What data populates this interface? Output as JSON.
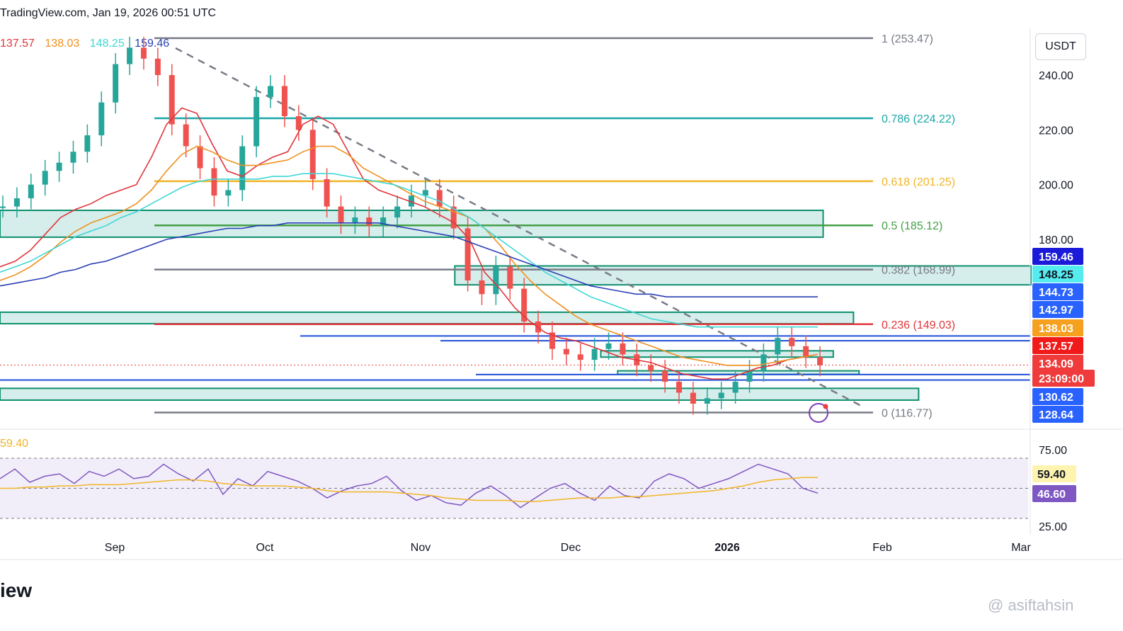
{
  "header": {
    "text": "TradingView.com, Jan 19, 2026 00:51 UTC"
  },
  "ma_legend": [
    {
      "value": "137.57",
      "color": "#e0353b"
    },
    {
      "value": "138.03",
      "color": "#f0901e"
    },
    {
      "value": "148.25",
      "color": "#3fd6d6"
    },
    {
      "value": "159.46",
      "color": "#2a3fb5"
    }
  ],
  "rsi_legend": {
    "value": "59.40"
  },
  "currency": "USDT",
  "footer": {
    "brand": "iew"
  },
  "watermark": {
    "text": "@ asiftahsin"
  },
  "chart_data": {
    "type": "candlestick",
    "title": "TradingView.com, Jan 19, 2026 00:51 UTC",
    "price_axis": {
      "min": 110,
      "max": 260,
      "ticks": [
        "240.00",
        "220.00",
        "200.00",
        "180.00"
      ]
    },
    "x_axis": {
      "labels": [
        "Sep",
        "Oct",
        "Nov",
        "Dec",
        "2026",
        "Feb",
        "Mar"
      ]
    },
    "fib_levels": [
      {
        "label": "1 (253.47)",
        "price": 253.47,
        "color": "#787b86"
      },
      {
        "label": "0.786 (224.22)",
        "price": 224.22,
        "color": "#1ba7a8"
      },
      {
        "label": "0.618 (201.25)",
        "price": 201.25,
        "color": "#f0b526"
      },
      {
        "label": "0.5 (185.12)",
        "price": 185.12,
        "color": "#43a047"
      },
      {
        "label": "0.382 (168.99)",
        "price": 168.99,
        "color": "#787b86"
      },
      {
        "label": "0.236 (149.03)",
        "price": 149.03,
        "color": "#e0353b"
      },
      {
        "label": "0 (116.77)",
        "price": 116.77,
        "color": "#787b86"
      }
    ],
    "price_labels": [
      {
        "text": "159.46",
        "price": 159.46,
        "bg": "#1a1ad8",
        "fg": "#ffffff"
      },
      {
        "text": "148.25",
        "price": 148.25,
        "bg": "#55ecf0",
        "fg": "#131722"
      },
      {
        "text": "144.73",
        "price": 144.73,
        "bg": "#2962ff",
        "fg": "#ffffff"
      },
      {
        "text": "142.97",
        "price": 142.97,
        "bg": "#2962ff",
        "fg": "#ffffff"
      },
      {
        "text": "138.03",
        "price": 138.03,
        "bg": "#f5a01e",
        "fg": "#ffffff"
      },
      {
        "text": "137.57",
        "price": 137.57,
        "bg": "#f01a1a",
        "fg": "#ffffff"
      },
      {
        "text": "134.09",
        "price": 134.09,
        "bg": "#ef3b3b",
        "fg": "#ffffff"
      },
      {
        "text": "23:09:00",
        "price": 131.6,
        "bg": "#ef3b3b",
        "fg": "#ffffff"
      },
      {
        "text": "130.62",
        "price": 130.62,
        "bg": "#2962ff",
        "fg": "#ffffff"
      },
      {
        "text": "128.64",
        "price": 128.64,
        "bg": "#2962ff",
        "fg": "#ffffff"
      }
    ],
    "zones": [
      {
        "name": "zone-180-190",
        "from_price": 180.8,
        "to_price": 190.6,
        "x_start": 0,
        "x_end": 0.733
      },
      {
        "name": "zone-163-170",
        "from_price": 163.4,
        "to_price": 170.3,
        "x_start": 0.405,
        "x_end": 0.918
      },
      {
        "name": "zone-150-154",
        "from_price": 149.2,
        "to_price": 153.4,
        "x_start": 0,
        "x_end": 0.76
      },
      {
        "name": "zone-137-139",
        "from_price": 137.0,
        "to_price": 139.3,
        "x_start": 0.535,
        "x_end": 0.742
      },
      {
        "name": "zone-130-132",
        "from_price": 130.7,
        "to_price": 132.0,
        "x_start": 0.55,
        "x_end": 0.765
      },
      {
        "name": "zone-121-125",
        "from_price": 121.3,
        "to_price": 125.6,
        "x_start": 0,
        "x_end": 0.818
      }
    ],
    "support_lines": [
      144.73,
      142.97,
      130.62,
      128.64
    ],
    "ma_series": [
      {
        "name": "MA 137.57",
        "color": "#e0353b",
        "values": [
          170,
          172,
          176,
          182,
          188,
          191,
          193,
          196,
          198,
          200,
          210,
          222,
          228,
          226,
          215,
          205,
          203,
          207,
          210,
          212,
          222,
          225,
          222,
          212,
          202,
          198,
          196,
          194,
          192,
          189,
          186,
          180,
          168,
          162,
          155,
          150,
          146,
          144,
          143,
          141,
          139,
          137,
          136,
          135,
          133,
          131,
          130,
          129,
          129,
          131,
          133,
          134,
          136,
          137,
          138
        ]
      },
      {
        "name": "MA 138.03",
        "color": "#f0901e",
        "values": [
          165,
          167,
          170,
          174,
          179,
          183,
          186,
          188,
          190,
          193,
          198,
          205,
          211,
          214,
          212,
          209,
          207,
          207,
          208,
          209,
          212,
          214,
          214,
          211,
          206,
          203,
          200,
          197,
          194,
          192,
          190,
          188,
          184,
          178,
          171,
          165,
          160,
          156,
          152,
          149,
          147,
          145,
          143,
          141,
          139,
          137,
          136,
          135,
          134,
          134,
          134,
          135,
          136,
          137,
          138
        ]
      },
      {
        "name": "MA 148.25",
        "color": "#3fd6d6",
        "values": [
          168,
          170,
          172,
          175,
          178,
          181,
          183,
          185,
          188,
          190,
          193,
          196,
          199,
          201,
          202,
          202,
          202,
          202,
          203,
          203,
          204,
          204,
          204,
          203,
          202,
          201,
          200,
          198,
          196,
          194,
          191,
          188,
          184,
          180,
          176,
          172,
          168,
          165,
          162,
          159,
          157,
          155,
          153,
          151,
          150,
          149,
          148,
          148,
          148,
          148,
          148,
          148,
          148,
          148,
          148
        ]
      },
      {
        "name": "MA 159.46",
        "color": "#2a3fb5",
        "values": [
          163,
          164,
          165,
          166,
          168,
          169,
          171,
          172,
          174,
          176,
          178,
          180,
          181,
          182,
          183,
          184,
          184,
          185,
          185,
          186,
          186,
          186,
          186,
          186,
          186,
          186,
          185,
          184,
          183,
          182,
          181,
          179,
          177,
          175,
          173,
          171,
          169,
          167,
          165,
          163,
          162,
          161,
          160,
          160,
          159,
          159,
          159,
          159,
          159,
          159,
          159,
          159,
          159,
          159,
          159
        ]
      }
    ],
    "candles_approx": [
      192,
      195,
      200,
      205,
      208,
      212,
      218,
      230,
      244,
      250,
      246,
      240,
      222,
      214,
      206,
      196,
      198,
      214,
      232,
      236,
      225,
      220,
      202,
      192,
      186,
      188,
      185,
      188,
      192,
      196,
      198,
      192,
      184,
      165,
      160,
      170,
      162,
      150,
      146,
      140,
      138,
      136,
      140,
      142,
      138,
      134,
      132,
      128,
      124,
      120,
      122,
      124,
      128,
      132,
      138,
      144,
      141,
      137,
      134
    ],
    "rsi": {
      "levels": [
        "75.00",
        "25.00"
      ],
      "labels": [
        {
          "text": "59.40",
          "bg": "#fff3b0",
          "fg": "#131722"
        },
        {
          "text": "46.60",
          "bg": "#7e57c2",
          "fg": "#ffffff"
        }
      ],
      "rsi_values": [
        58,
        66,
        55,
        60,
        62,
        54,
        64,
        60,
        66,
        58,
        60,
        70,
        62,
        56,
        66,
        45,
        58,
        52,
        64,
        60,
        56,
        50,
        42,
        48,
        52,
        54,
        60,
        48,
        40,
        44,
        38,
        36,
        46,
        52,
        44,
        34,
        42,
        50,
        54,
        46,
        40,
        52,
        44,
        42,
        56,
        62,
        58,
        50,
        54,
        58,
        64,
        70,
        66,
        62,
        50,
        46
      ],
      "ma_values": [
        50,
        50,
        51,
        51,
        52,
        52,
        53,
        53,
        53,
        54,
        55,
        56,
        57,
        57,
        56,
        54,
        53,
        52,
        52,
        52,
        51,
        50,
        48,
        47,
        47,
        47,
        47,
        46,
        45,
        44,
        42,
        41,
        40,
        40,
        40,
        39,
        39,
        40,
        41,
        42,
        42,
        42,
        43,
        43,
        44,
        45,
        46,
        47,
        48,
        50,
        52,
        55,
        57,
        58,
        59,
        59
      ]
    }
  }
}
